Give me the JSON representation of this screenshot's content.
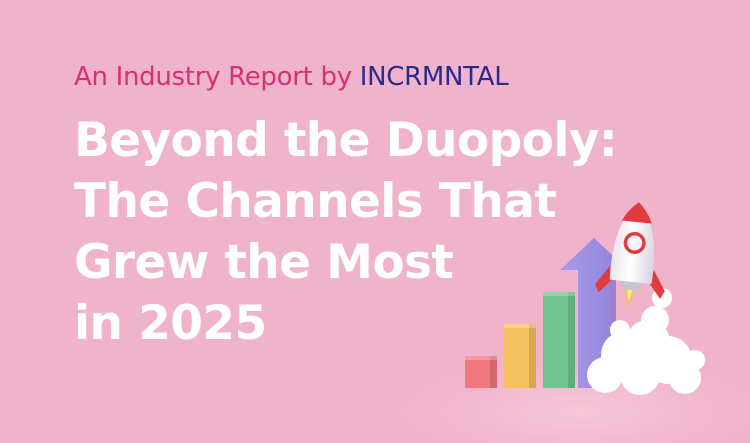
{
  "hero": {
    "subtitle": {
      "lead": "An Industry Report by ",
      "brand": "INCRMNTAL"
    },
    "title_lines": [
      "Beyond the Duopoly:",
      "The Channels That",
      "Grew the Most",
      "in 2025"
    ]
  },
  "illustration": {
    "bar_values": [
      1,
      2,
      3,
      4
    ],
    "bar_colors": [
      "#f0787e",
      "#f5c060",
      "#6fc78f",
      "#a79be8"
    ],
    "rocket_body_color": "#fafafa",
    "rocket_fin_color": "#e23a3f",
    "cloud_color": "#ffffff"
  }
}
